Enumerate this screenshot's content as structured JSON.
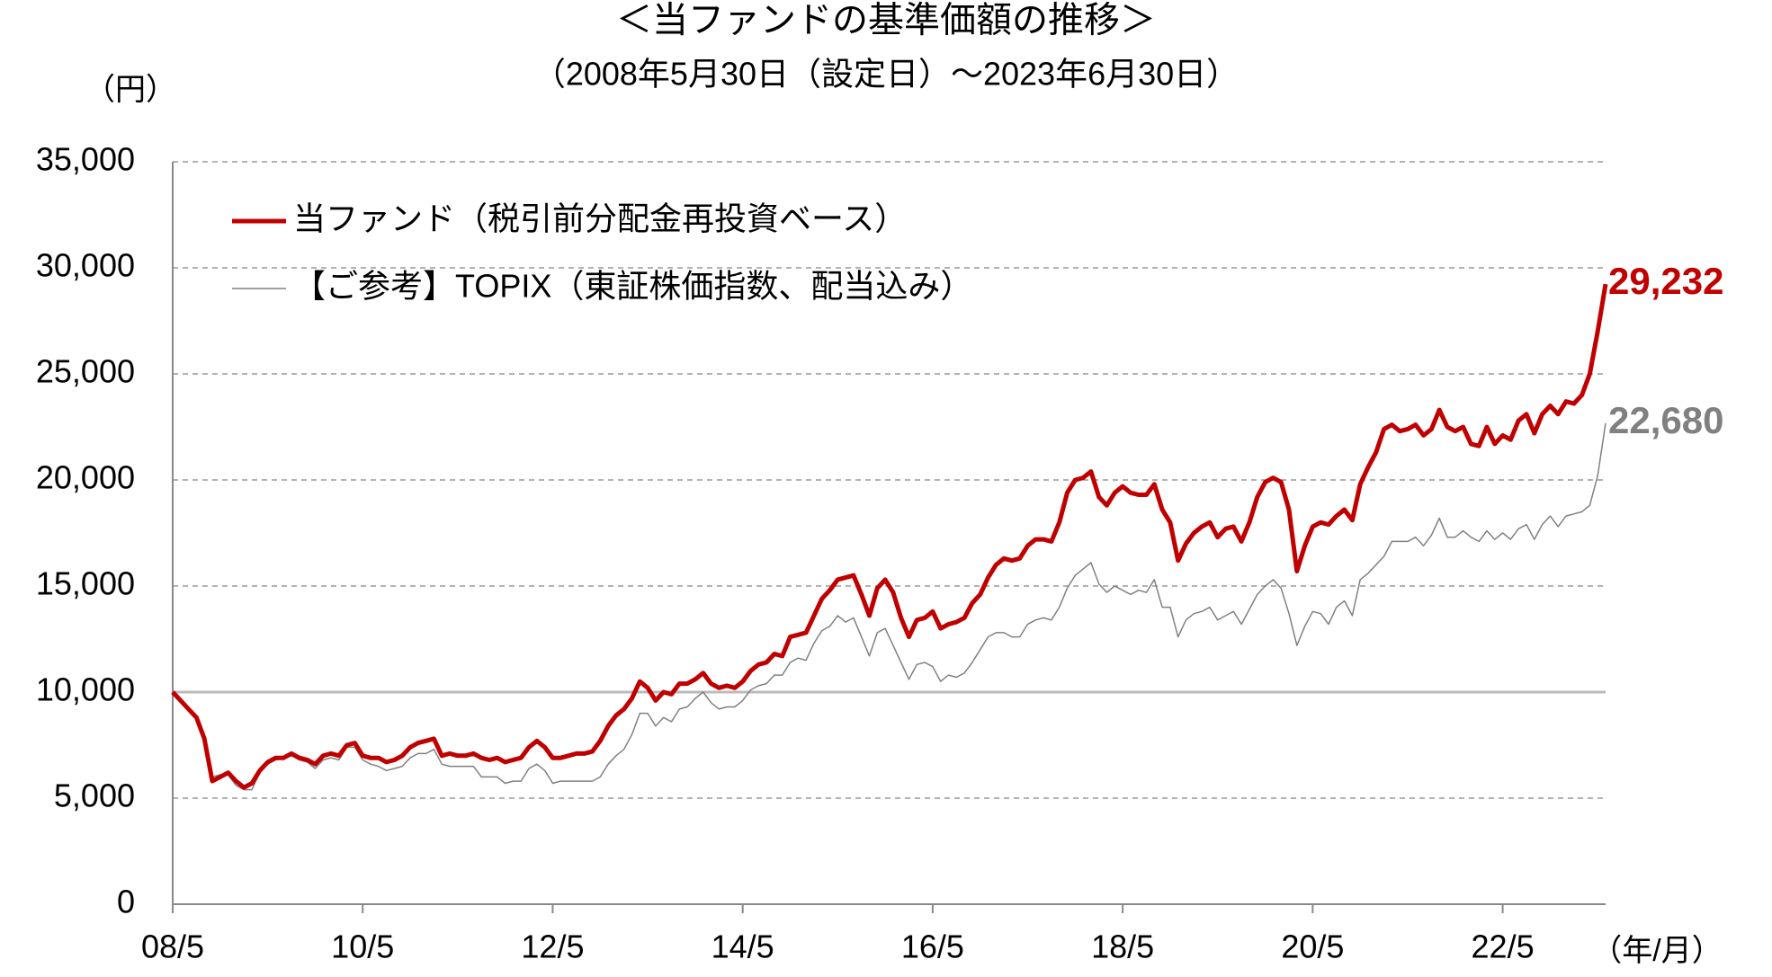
{
  "chart_data": {
    "type": "line",
    "title": "＜当ファンドの基準価額の推移＞",
    "subtitle": "（2008年5月30日（設定日）～2023年6月30日）",
    "y_label": "（円）",
    "x_label": "（年/月）",
    "categories": [
      "08/5",
      null,
      null,
      null,
      null,
      null,
      null,
      null,
      null,
      null,
      null,
      null,
      null,
      null,
      null,
      null,
      null,
      null,
      null,
      null,
      null,
      null,
      null,
      null,
      "10/5",
      null,
      null,
      null,
      null,
      null,
      null,
      null,
      null,
      null,
      null,
      null,
      null,
      null,
      null,
      null,
      null,
      null,
      null,
      null,
      null,
      null,
      null,
      null,
      "12/5",
      null,
      null,
      null,
      null,
      null,
      null,
      null,
      null,
      null,
      null,
      null,
      null,
      null,
      null,
      null,
      null,
      null,
      null,
      null,
      null,
      null,
      null,
      null,
      "14/5",
      null,
      null,
      null,
      null,
      null,
      null,
      null,
      null,
      null,
      null,
      null,
      null,
      null,
      null,
      null,
      null,
      null,
      null,
      null,
      null,
      null,
      null,
      null,
      "16/5",
      null,
      null,
      null,
      null,
      null,
      null,
      null,
      null,
      null,
      null,
      null,
      null,
      null,
      null,
      null,
      null,
      null,
      null,
      null,
      null,
      null,
      null,
      null,
      "18/5",
      null,
      null,
      null,
      null,
      null,
      null,
      null,
      null,
      null,
      null,
      null,
      null,
      null,
      null,
      null,
      null,
      null,
      null,
      null,
      null,
      null,
      null,
      null,
      "20/5",
      null,
      null,
      null,
      null,
      null,
      null,
      null,
      null,
      null,
      null,
      null,
      null,
      null,
      null,
      null,
      null,
      null,
      null,
      null,
      null,
      null,
      null,
      null,
      "22/5",
      null,
      null,
      null,
      null,
      null,
      null,
      null,
      null,
      null,
      null,
      null,
      null,
      null
    ],
    "series": [
      {
        "name": "【ご参考】TOPIX（東証株価指数、配当込み）",
        "color": "#808080",
        "width": 1.5,
        "last_label": "22,680",
        "values": [
          10000,
          9600,
          9200,
          8800,
          7800,
          6000,
          6100,
          6100,
          5600,
          5400,
          5400,
          6200,
          6600,
          6800,
          6900,
          7000,
          6800,
          6700,
          6400,
          6800,
          6900,
          6800,
          7400,
          7400,
          6800,
          6600,
          6500,
          6300,
          6400,
          6500,
          6900,
          7100,
          7100,
          7300,
          6600,
          6500,
          6500,
          6500,
          6500,
          6000,
          6000,
          6000,
          5700,
          5800,
          5800,
          6400,
          6600,
          6300,
          5700,
          5800,
          5800,
          5800,
          5800,
          5800,
          6000,
          6600,
          7000,
          7300,
          8000,
          9000,
          9000,
          8400,
          8800,
          8600,
          9200,
          9300,
          9700,
          10000,
          9500,
          9200,
          9300,
          9300,
          9600,
          10100,
          10300,
          10400,
          10800,
          10800,
          11400,
          11600,
          11500,
          12300,
          12900,
          13100,
          13600,
          13300,
          13500,
          12600,
          11700,
          12800,
          13000,
          12200,
          11400,
          10600,
          11300,
          11400,
          11200,
          10500,
          10800,
          10700,
          10900,
          11400,
          12000,
          12600,
          12800,
          12800,
          12600,
          12600,
          13200,
          13400,
          13500,
          13400,
          14000,
          14900,
          15500,
          15800,
          16100,
          15100,
          14700,
          15000,
          14800,
          14600,
          14800,
          14700,
          15300,
          14000,
          14000,
          12600,
          13400,
          13700,
          13800,
          14000,
          13400,
          13600,
          13800,
          13200,
          13900,
          14600,
          15000,
          15300,
          14900,
          13700,
          12200,
          13100,
          13800,
          13700,
          13200,
          14000,
          14300,
          13600,
          15300,
          15600,
          16000,
          16400,
          17100,
          17100,
          17100,
          17300,
          16900,
          17400,
          18200,
          17300,
          17300,
          17600,
          17300,
          17100,
          17600,
          17200,
          17500,
          17200,
          17700,
          17900,
          17200,
          17900,
          18300,
          17800,
          18300,
          18400,
          18500,
          18800,
          20200,
          22680
        ]
      },
      {
        "name": "当ファンド（税引前分配金再投資ベース）",
        "color": "#c00000",
        "width": 5,
        "last_label": "29,232",
        "values": [
          10000,
          9600,
          9200,
          8800,
          7800,
          5800,
          6000,
          6200,
          5800,
          5500,
          5700,
          6300,
          6700,
          6900,
          6900,
          7100,
          6900,
          6800,
          6600,
          7000,
          7100,
          7000,
          7500,
          7600,
          7000,
          6900,
          6900,
          6700,
          6800,
          7000,
          7400,
          7600,
          7700,
          7800,
          7000,
          7100,
          7000,
          7000,
          7100,
          6900,
          6800,
          6900,
          6700,
          6800,
          6900,
          7400,
          7700,
          7400,
          6900,
          6900,
          7000,
          7100,
          7100,
          7200,
          7700,
          8400,
          8900,
          9200,
          9700,
          10500,
          10200,
          9600,
          10000,
          9900,
          10400,
          10400,
          10600,
          10900,
          10400,
          10200,
          10300,
          10200,
          10500,
          11000,
          11300,
          11400,
          11800,
          11700,
          12600,
          12700,
          12800,
          13600,
          14400,
          14800,
          15300,
          15400,
          15500,
          14600,
          13600,
          14900,
          15300,
          14700,
          13500,
          12600,
          13400,
          13500,
          13800,
          13000,
          13200,
          13300,
          13500,
          14200,
          14600,
          15400,
          16000,
          16300,
          16200,
          16300,
          16900,
          17200,
          17200,
          17100,
          18000,
          19400,
          20000,
          20100,
          20400,
          19200,
          18800,
          19400,
          19700,
          19400,
          19300,
          19300,
          19800,
          18600,
          18000,
          16200,
          17000,
          17500,
          17800,
          18000,
          17300,
          17700,
          17800,
          17100,
          18000,
          19200,
          19900,
          20100,
          19900,
          18600,
          15700,
          16900,
          17800,
          18000,
          17900,
          18300,
          18600,
          18100,
          19800,
          20600,
          21300,
          22400,
          22600,
          22300,
          22400,
          22600,
          22100,
          22400,
          23300,
          22500,
          22300,
          22500,
          21700,
          21600,
          22500,
          21700,
          22100,
          21900,
          22800,
          23100,
          22200,
          23100,
          23500,
          23100,
          23700,
          23600,
          24000,
          25000,
          27000,
          29232
        ]
      }
    ],
    "legend_order": [
      1,
      0
    ],
    "ylim": [
      0,
      35000
    ],
    "yticks": [
      0,
      {
        "value": 5000,
        "label": "5,000"
      },
      {
        "value": 10000,
        "label": "10,000"
      },
      {
        "value": 15000,
        "label": "15,000"
      },
      {
        "value": 20000,
        "label": "20,000"
      },
      {
        "value": 25000,
        "label": "25,000"
      },
      {
        "value": 30000,
        "label": "30,000"
      },
      {
        "value": 35000,
        "label": "35,000"
      }
    ],
    "reference_line": 10000,
    "grid": true
  }
}
